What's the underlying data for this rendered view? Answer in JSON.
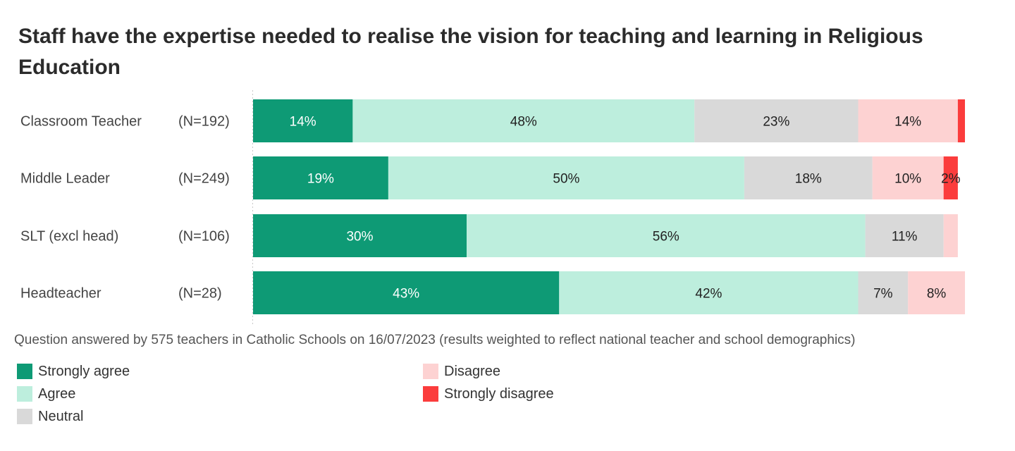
{
  "title": "Staff have the expertise needed to realise the vision for teaching and learning in Religious Education",
  "note": "Question answered by 575 teachers in Catholic Schools on 16/07/2023 (results weighted to reflect national teacher and school demographics)",
  "colors": {
    "strongly_agree": "#0e9a75",
    "agree": "#bdeedd",
    "neutral": "#d9d9d9",
    "disagree": "#fdd2d2",
    "strongly_disagree": "#fb3c3c"
  },
  "legend": [
    {
      "label": "Strongly agree",
      "key": "strongly_agree"
    },
    {
      "label": "Agree",
      "key": "agree"
    },
    {
      "label": "Neutral",
      "key": "neutral"
    },
    {
      "label": "Disagree",
      "key": "disagree"
    },
    {
      "label": "Strongly disagree",
      "key": "strongly_disagree"
    }
  ],
  "chart_data": {
    "type": "bar",
    "orientation": "horizontal",
    "stacked": true,
    "title": "Staff have the expertise needed to realise the vision for teaching and learning in Religious Education",
    "categories": [
      "Classroom Teacher",
      "Middle Leader",
      "SLT (excl head)",
      "Headteacher"
    ],
    "counts": [
      "(N=192)",
      "(N=249)",
      "(N=106)",
      "(N=28)"
    ],
    "xlim": [
      0,
      100
    ],
    "grid": false,
    "legend_position": "bottom",
    "series": [
      {
        "name": "Strongly agree",
        "key": "strongly_agree",
        "values": [
          14,
          19,
          30,
          43
        ],
        "labels": [
          "14%",
          "19%",
          "30%",
          "43%"
        ]
      },
      {
        "name": "Agree",
        "key": "agree",
        "values": [
          48,
          50,
          56,
          42
        ],
        "labels": [
          "48%",
          "50%",
          "56%",
          "42%"
        ]
      },
      {
        "name": "Neutral",
        "key": "neutral",
        "values": [
          23,
          18,
          11,
          7
        ],
        "labels": [
          "23%",
          "18%",
          "11%",
          "7%"
        ]
      },
      {
        "name": "Disagree",
        "key": "disagree",
        "values": [
          14,
          10,
          2,
          8
        ],
        "labels": [
          "14%",
          "10%",
          "",
          "8%"
        ]
      },
      {
        "name": "Strongly disagree",
        "key": "strongly_disagree",
        "values": [
          1,
          2,
          0,
          0
        ],
        "labels": [
          "",
          "2%",
          "",
          ""
        ]
      }
    ]
  }
}
